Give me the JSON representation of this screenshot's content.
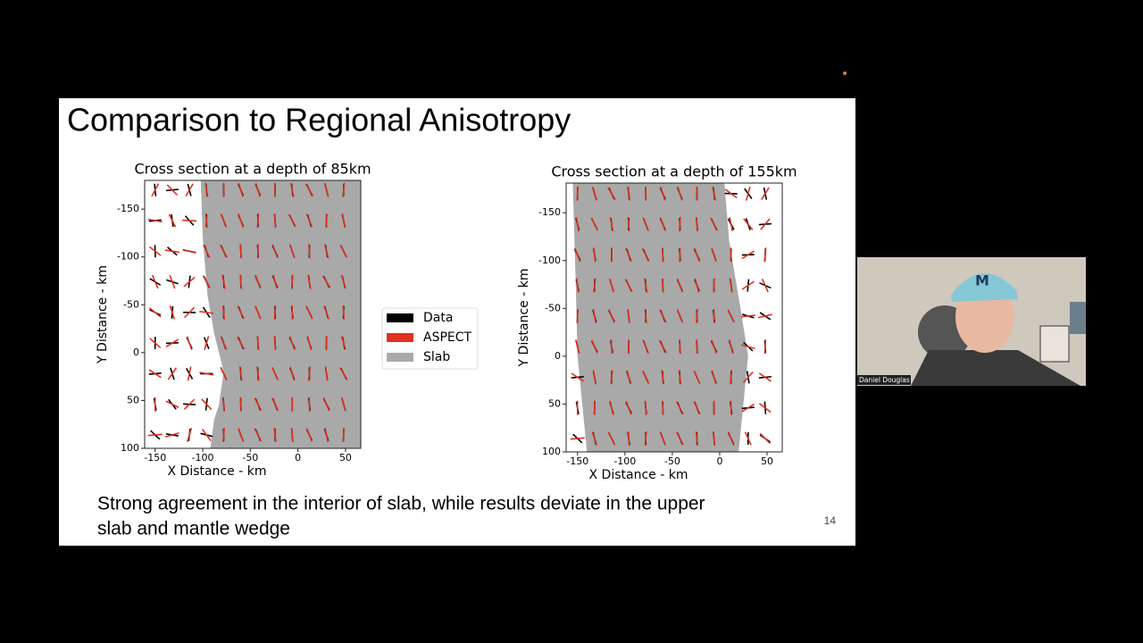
{
  "slide": {
    "title": "Comparison to Regional Anisotropy",
    "caption_lines": [
      "Strong agreement in the interior of slab, while results deviate in the upper",
      "slab and mantle wedge"
    ],
    "page_number": "14"
  },
  "plots": [
    {
      "title": "Cross section at a depth of 85km",
      "xlabel": "X Distance - km",
      "ylabel": "Y Distance - km",
      "xlim": [
        -161,
        66
      ],
      "ylim": [
        -180,
        100
      ],
      "xticks": [
        -150,
        -100,
        -50,
        0,
        50
      ],
      "yticks": [
        -150,
        -100,
        -50,
        0,
        50,
        100
      ]
    },
    {
      "title": "Cross section at a depth of 155km",
      "xlabel": "X Distance - km",
      "ylabel": "Y Distance - km",
      "xlim": [
        -162,
        66
      ],
      "ylim": [
        -181,
        100
      ],
      "xticks": [
        -150,
        -100,
        -50,
        0,
        50
      ],
      "yticks": [
        -150,
        -100,
        -50,
        0,
        50,
        100
      ]
    }
  ],
  "legend": [
    {
      "name": "Data",
      "color": "#000000"
    },
    {
      "name": "ASPECT",
      "color": "#e0301e"
    },
    {
      "name": "Slab",
      "color": "#a9a9a9"
    }
  ],
  "participant": {
    "name": "Daniel Douglas"
  }
}
